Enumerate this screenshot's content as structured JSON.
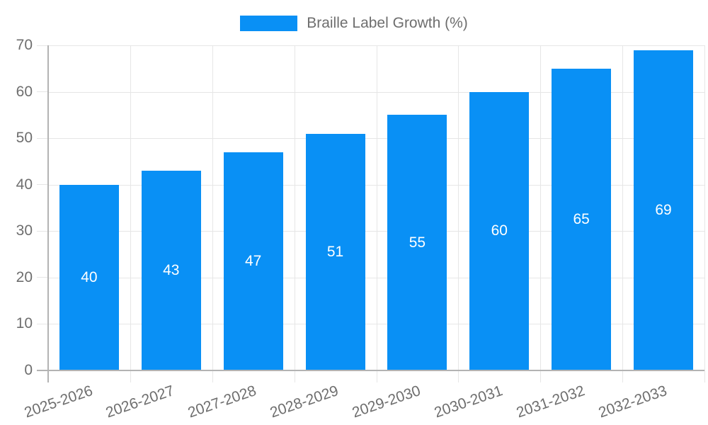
{
  "chart_data": {
    "type": "bar",
    "title": "Braille Label Growth (%)",
    "categories": [
      "2025-2026",
      "2026-2027",
      "2027-2028",
      "2028-2029",
      "2029-2030",
      "2030-2031",
      "2031-2032",
      "2032-2033"
    ],
    "values": [
      40,
      43,
      47,
      51,
      55,
      60,
      65,
      69
    ],
    "xlabel": "",
    "ylabel": "",
    "ylim": [
      0,
      70
    ],
    "ytick_step": 10,
    "ytick_labels": [
      "0",
      "10",
      "20",
      "30",
      "40",
      "50",
      "60",
      "70"
    ],
    "grid": true,
    "legend_position": "top-center",
    "value_labels_inside_bars": true,
    "xlabel_rotation_deg": -19
  },
  "colors": {
    "bar": "#0990f5",
    "grid": "#e6e6e6",
    "axis": "#b3b3b3",
    "tick_text": "#6e6e6e",
    "value_label": "#ffffff",
    "background": "#ffffff"
  }
}
